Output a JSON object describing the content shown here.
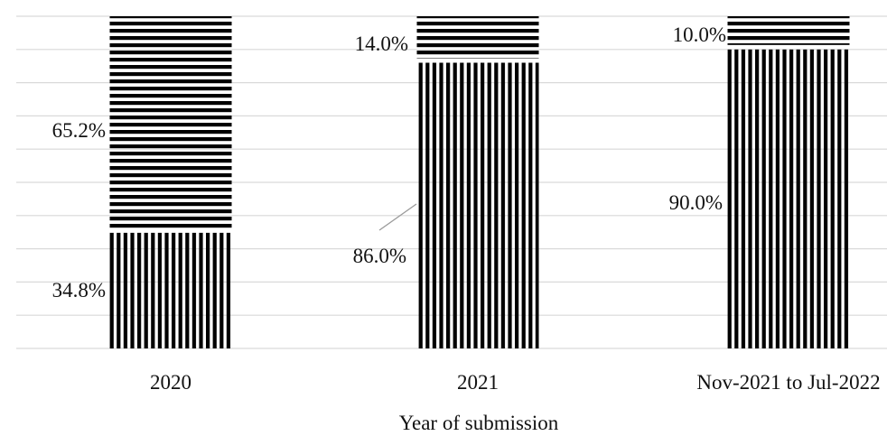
{
  "chart_data": {
    "type": "bar",
    "stacked": true,
    "percent_stacked": true,
    "categories": [
      "2020",
      "2021",
      "Nov-2021 to Jul-2022"
    ],
    "series": [
      {
        "values": [
          34.8,
          86.0,
          90.0
        ],
        "pattern": "vertical-stripes",
        "labels": [
          "34.8%",
          "86.0%",
          "90.0%"
        ]
      },
      {
        "values": [
          65.2,
          14.0,
          10.0
        ],
        "pattern": "horizontal-stripes",
        "labels": [
          "65.2%",
          "14.0%",
          "10.0%"
        ]
      }
    ],
    "xlabel": "Year of submission",
    "ylabel": "",
    "ylim": [
      0,
      100
    ],
    "grid": true,
    "colors": {
      "stripe": "#000000",
      "grid": "#d9d9d9",
      "background": "#ffffff",
      "label_text": "#111111"
    }
  }
}
